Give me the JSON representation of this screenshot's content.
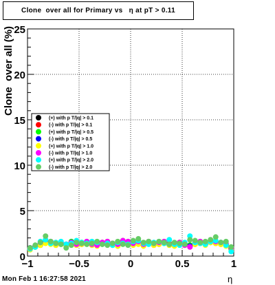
{
  "chart_data": {
    "type": "scatter",
    "title": "Clone  over all for Primary vs   η at pT > 0.11",
    "xlabel": "η",
    "ylabel": "Clone  over all (%)",
    "xlim": [
      -1,
      1
    ],
    "ylim": [
      0,
      25
    ],
    "grid": true,
    "legend_position": "left-middle",
    "x_ticks": [
      "−1",
      "−0.5",
      "0",
      "0.5",
      "1"
    ],
    "y_ticks": [
      "0",
      "5",
      "10",
      "15",
      "20",
      "25"
    ],
    "x": [
      -0.975,
      -0.925,
      -0.875,
      -0.825,
      -0.775,
      -0.725,
      -0.675,
      -0.625,
      -0.575,
      -0.525,
      -0.475,
      -0.425,
      -0.375,
      -0.325,
      -0.275,
      -0.225,
      -0.175,
      -0.125,
      -0.075,
      -0.025,
      0.025,
      0.075,
      0.125,
      0.175,
      0.225,
      0.275,
      0.325,
      0.375,
      0.425,
      0.475,
      0.525,
      0.575,
      0.625,
      0.675,
      0.725,
      0.775,
      0.825,
      0.875,
      0.925,
      0.975
    ],
    "series": [
      {
        "name": "(+) with p T/|q| > 0.1",
        "color": "#000000",
        "values": [
          0.8,
          1.0,
          1.2,
          1.6,
          1.5,
          1.3,
          1.4,
          1.2,
          1.5,
          1.3,
          1.4,
          1.5,
          1.3,
          1.2,
          1.4,
          1.5,
          1.3,
          1.2,
          1.6,
          1.5,
          1.3,
          1.4,
          1.2,
          1.5,
          1.3,
          1.4,
          1.5,
          1.3,
          1.2,
          1.4,
          1.3,
          1.1,
          1.4,
          1.5,
          1.3,
          1.6,
          1.5,
          1.4,
          1.2,
          0.8
        ]
      },
      {
        "name": "(-) with p T/|q| > 0.1",
        "color": "#ff0000",
        "values": [
          0.9,
          1.1,
          1.3,
          1.5,
          1.4,
          1.2,
          1.5,
          1.3,
          1.4,
          1.2,
          1.3,
          1.4,
          1.4,
          1.3,
          1.5,
          1.4,
          1.2,
          1.3,
          1.5,
          1.4,
          1.4,
          1.5,
          1.3,
          1.4,
          1.2,
          1.3,
          1.4,
          1.4,
          1.3,
          1.5,
          1.2,
          1.2,
          1.3,
          1.4,
          1.4,
          1.5,
          1.4,
          1.3,
          1.3,
          0.9
        ]
      },
      {
        "name": "(+) with p T/|q| > 0.5",
        "color": "#00ff00",
        "values": [
          0.8,
          1.0,
          1.3,
          1.7,
          1.6,
          1.4,
          1.3,
          1.2,
          1.6,
          1.4,
          1.5,
          1.6,
          1.2,
          1.3,
          1.5,
          1.6,
          1.4,
          1.1,
          1.7,
          1.6,
          1.4,
          1.5,
          1.3,
          1.6,
          1.4,
          1.5,
          1.6,
          1.2,
          1.3,
          1.5,
          1.4,
          1.2,
          1.5,
          1.6,
          1.4,
          1.7,
          1.6,
          1.5,
          1.3,
          0.7
        ]
      },
      {
        "name": "(-) with p T/|q| > 0.5",
        "color": "#0000ff",
        "values": [
          0.9,
          1.1,
          1.4,
          1.6,
          1.5,
          1.3,
          1.4,
          1.3,
          1.5,
          1.3,
          1.4,
          1.5,
          1.3,
          1.4,
          1.4,
          1.5,
          1.3,
          1.2,
          1.6,
          1.5,
          1.3,
          1.4,
          1.2,
          1.5,
          1.3,
          1.4,
          1.5,
          1.3,
          1.2,
          1.4,
          1.3,
          1.1,
          1.4,
          1.5,
          1.3,
          1.6,
          1.5,
          1.4,
          1.2,
          0.8
        ]
      },
      {
        "name": "(+) with p T/|q| > 1.0",
        "color": "#ffff00",
        "values": [
          0.7,
          1.0,
          1.2,
          1.4,
          1.3,
          1.2,
          1.3,
          1.1,
          1.4,
          1.2,
          1.3,
          1.4,
          1.2,
          1.1,
          1.3,
          1.4,
          1.2,
          1.1,
          1.5,
          1.4,
          1.2,
          1.3,
          1.1,
          1.4,
          1.2,
          1.3,
          1.4,
          1.2,
          1.1,
          1.3,
          1.2,
          1.0,
          1.3,
          1.4,
          1.2,
          1.5,
          1.4,
          1.3,
          1.1,
          0.7
        ]
      },
      {
        "name": "(-) with p T/|q| > 1.0",
        "color": "#ff00ff",
        "values": [
          0.8,
          1.1,
          1.5,
          1.8,
          1.6,
          1.4,
          1.5,
          1.3,
          1.5,
          1.3,
          1.4,
          1.6,
          1.3,
          1.2,
          1.5,
          1.6,
          1.4,
          1.3,
          1.7,
          1.6,
          1.4,
          1.6,
          1.3,
          1.6,
          1.4,
          1.5,
          1.6,
          1.3,
          1.3,
          1.5,
          1.2,
          1.0,
          1.5,
          1.6,
          1.4,
          1.7,
          1.6,
          1.5,
          1.4,
          0.9
        ]
      },
      {
        "name": "(+) with p T/|q| > 2.0",
        "color": "#00ffff",
        "values": [
          0.8,
          1.0,
          1.6,
          1.8,
          1.4,
          1.5,
          1.6,
          1.3,
          1.4,
          1.7,
          1.5,
          1.4,
          1.6,
          1.5,
          1.3,
          1.4,
          1.2,
          1.5,
          1.4,
          1.3,
          1.6,
          1.7,
          1.4,
          1.3,
          1.5,
          1.6,
          1.4,
          1.8,
          1.3,
          1.2,
          1.5,
          2.2,
          1.5,
          1.4,
          1.3,
          1.6,
          1.7,
          1.5,
          1.2,
          0.5
        ]
      },
      {
        "name": "(-) with p T/|q| > 2.0",
        "color": "#66cc66",
        "values": [
          0.9,
          1.2,
          1.5,
          2.2,
          1.6,
          1.4,
          1.3,
          0.9,
          1.2,
          1.5,
          1.4,
          1.3,
          1.4,
          1.6,
          1.3,
          1.2,
          1.4,
          1.6,
          1.3,
          1.2,
          1.7,
          1.9,
          1.5,
          1.6,
          1.4,
          1.6,
          1.5,
          1.3,
          1.5,
          1.4,
          1.3,
          1.8,
          1.7,
          1.5,
          1.6,
          1.8,
          2.1,
          1.5,
          1.6,
          1.0
        ]
      }
    ]
  },
  "footer": {
    "timestamp": "Mon Feb  1 16:27:58 2021"
  }
}
